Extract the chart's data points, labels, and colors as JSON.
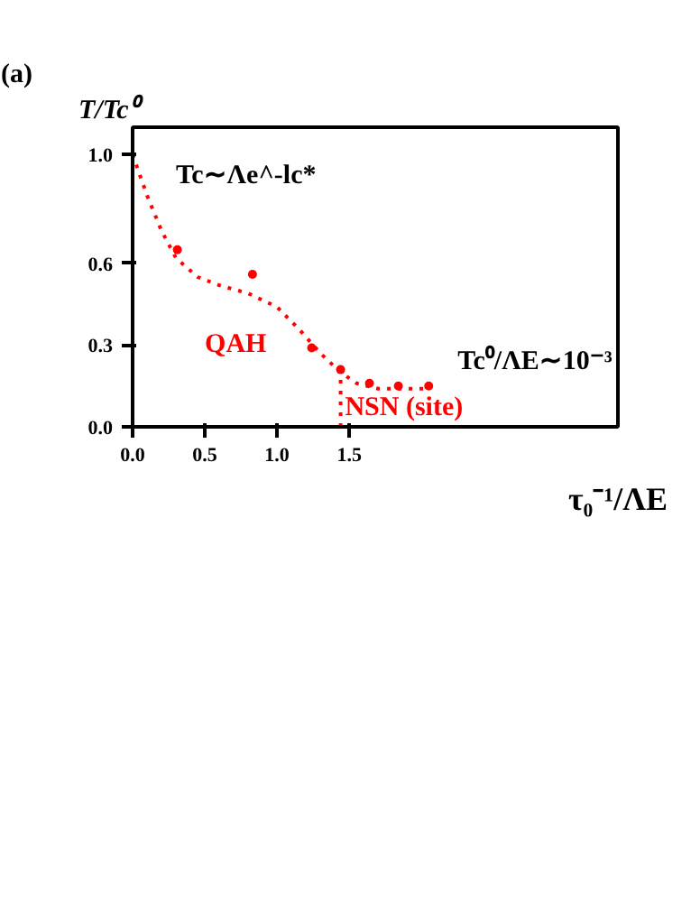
{
  "chart_data": {
    "type": "scatter",
    "title": "(a)",
    "ylabel": "T/Tc⁰",
    "xlabel": "τ₀⁻¹/ΛE",
    "xlim": [
      0,
      3.36
    ],
    "ylim": [
      0,
      1.1
    ],
    "xticks": [
      {
        "value": 0,
        "label": "0.0"
      },
      {
        "value": 0.5,
        "label": "0.5"
      },
      {
        "value": 1,
        "label": "1.0"
      },
      {
        "value": 1.5,
        "label": "1.5"
      }
    ],
    "yticks": [
      {
        "value": 0,
        "label": "0.0"
      },
      {
        "value": 0.3,
        "label": "0.3"
      },
      {
        "value": 0.6,
        "label": "0.6"
      },
      {
        "value": 1,
        "label": "1.0"
      }
    ],
    "grid": false,
    "marker": "circle",
    "x": [
      0.31,
      0.83,
      1.24,
      1.44,
      1.64,
      1.84,
      2.05
    ],
    "series": [
      {
        "color": "#ff0000",
        "values": [
          0.65,
          0.56,
          0.29,
          0.21,
          0.16,
          0.15,
          0.15
        ]
      },
      {
        "type": "line",
        "color": "#ff0000",
        "line_style": "dotted",
        "marker": "none",
        "x": [
          0,
          0.1,
          0.2,
          0.3,
          0.45,
          0.6,
          0.8,
          1.0,
          1.15,
          1.3,
          1.44,
          1.55,
          1.7,
          1.85,
          2.05
        ],
        "values": [
          1.0,
          0.85,
          0.72,
          0.62,
          0.55,
          0.52,
          0.49,
          0.44,
          0.36,
          0.27,
          0.2,
          0.16,
          0.14,
          0.14,
          0.14
        ]
      },
      {
        "type": "line",
        "color": "#ff0000",
        "line_style": "dotted",
        "marker": "none",
        "x": [
          1.44,
          1.44
        ],
        "values": [
          0,
          0.21
        ]
      }
    ],
    "annotations": [
      "Tc∼Λe^-lc*",
      "QAH",
      "Tc⁰/ΛE∼10⁻³",
      "NSN (site)"
    ]
  }
}
